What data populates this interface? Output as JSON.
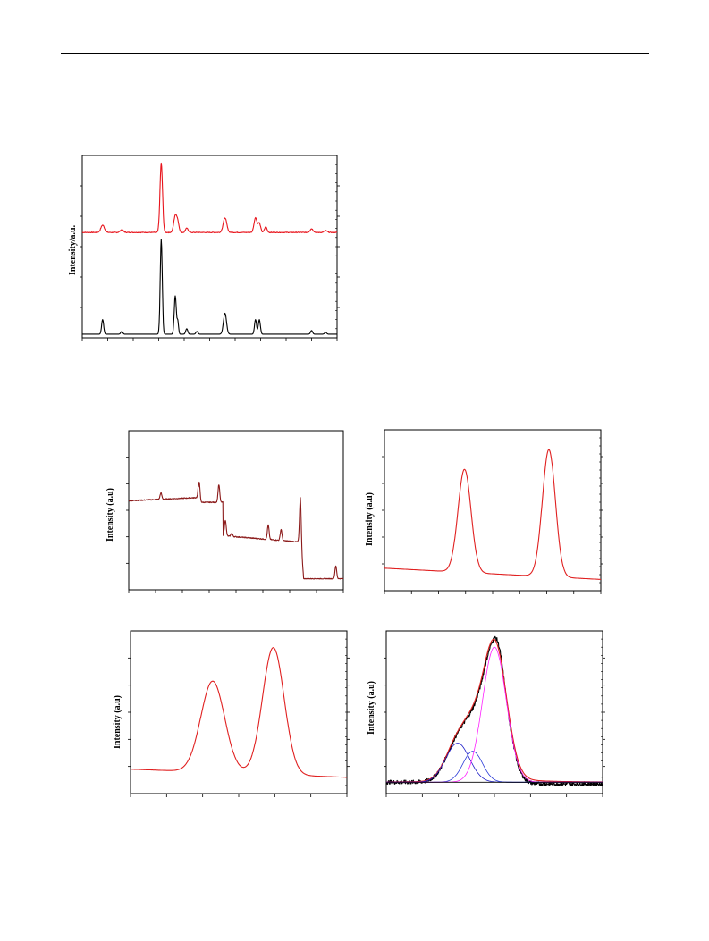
{
  "page": {
    "header_rule": true
  },
  "chart_data": [
    {
      "id": "xrd",
      "type": "line",
      "xlabel": "",
      "ylabel": "Intensity/a.u.",
      "y_ticks_right": true,
      "series": [
        {
          "color": "#e8141c",
          "baseline": 0.578,
          "peaks": [
            [
              0.08,
              0.04,
              0.007
            ],
            [
              0.155,
              0.015,
              0.006
            ],
            [
              0.31,
              0.38,
              0.005
            ],
            [
              0.365,
              0.09,
              0.006
            ],
            [
              0.375,
              0.05,
              0.005
            ],
            [
              0.41,
              0.025,
              0.005
            ],
            [
              0.56,
              0.08,
              0.007
            ],
            [
              0.68,
              0.08,
              0.006
            ],
            [
              0.695,
              0.05,
              0.005
            ],
            [
              0.72,
              0.03,
              0.005
            ],
            [
              0.9,
              0.02,
              0.006
            ],
            [
              0.955,
              0.01,
              0.006
            ]
          ],
          "noise": 0.004
        },
        {
          "color": "#000000",
          "baseline": 0.02,
          "peaks": [
            [
              0.08,
              0.08,
              0.004
            ],
            [
              0.155,
              0.015,
              0.004
            ],
            [
              0.31,
              0.52,
              0.004
            ],
            [
              0.365,
              0.21,
              0.004
            ],
            [
              0.375,
              0.07,
              0.003
            ],
            [
              0.41,
              0.03,
              0.004
            ],
            [
              0.45,
              0.015,
              0.004
            ],
            [
              0.56,
              0.115,
              0.006
            ],
            [
              0.68,
              0.08,
              0.004
            ],
            [
              0.695,
              0.08,
              0.004
            ],
            [
              0.9,
              0.02,
              0.004
            ],
            [
              0.955,
              0.01,
              0.004
            ]
          ],
          "noise": 0.0
        }
      ]
    },
    {
      "id": "survey",
      "type": "line",
      "xlabel": "",
      "ylabel": "Intensity  (a.u)",
      "series": [
        {
          "color": "#8b1a1a",
          "kind": "survey"
        }
      ]
    },
    {
      "id": "doublet-1",
      "type": "line",
      "xlabel": "",
      "ylabel": "Intensity  (a.u)",
      "series": [
        {
          "color": "#e02020",
          "baseline_start": 0.14,
          "baseline_end": 0.07,
          "peaks": [
            [
              0.37,
              0.64,
              0.03
            ],
            [
              0.76,
              0.79,
              0.03
            ]
          ]
        }
      ]
    },
    {
      "id": "doublet-2",
      "type": "line",
      "xlabel": "",
      "ylabel": "Intensity  (a.u)",
      "series": [
        {
          "color": "#e02020",
          "baseline_start": 0.15,
          "baseline_end": 0.1,
          "peaks": [
            [
              0.38,
              0.56,
              0.055
            ],
            [
              0.66,
              0.78,
              0.05
            ]
          ]
        }
      ]
    },
    {
      "id": "deconvolution",
      "type": "line",
      "xlabel": "",
      "ylabel": "Intensity  (a.u)",
      "series": [
        {
          "color": "#000000",
          "kind": "raw"
        },
        {
          "color": "#e02020",
          "kind": "envelope"
        },
        {
          "color": "#1c1cc8",
          "kind": "component",
          "center": 0.33,
          "height": 0.24,
          "width": 0.055
        },
        {
          "color": "#2a3ad8",
          "kind": "component",
          "center": 0.4,
          "height": 0.19,
          "width": 0.045
        },
        {
          "color": "#ff1fff",
          "kind": "component",
          "center": 0.5,
          "height": 0.83,
          "width": 0.055
        },
        {
          "color": "#000000",
          "kind": "baseline"
        }
      ]
    }
  ]
}
